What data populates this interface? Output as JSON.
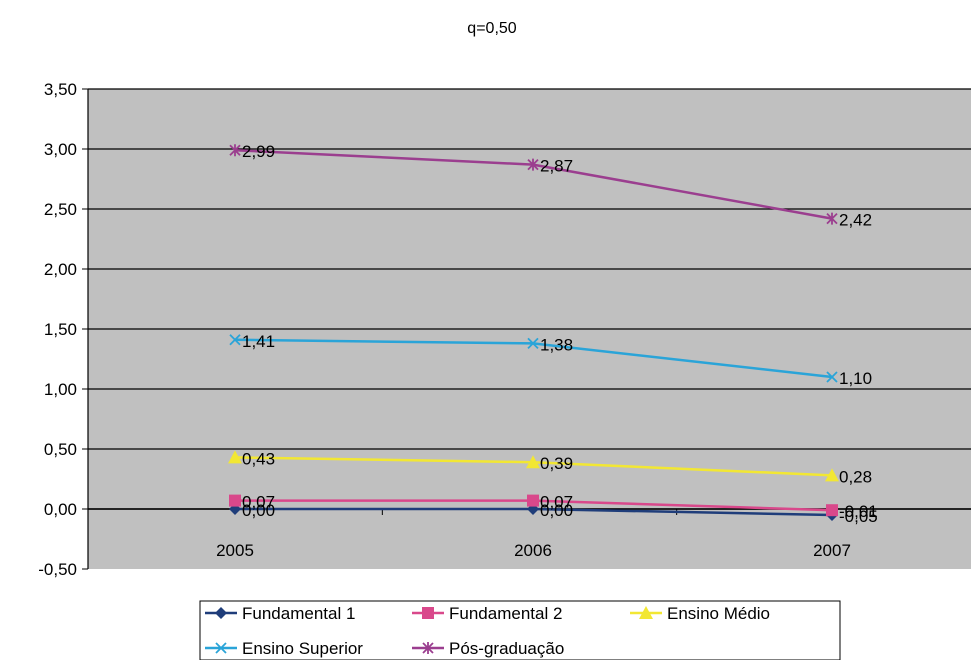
{
  "chart_data": {
    "type": "line",
    "title": "q=0,50",
    "categories": [
      "2005",
      "2006",
      "2007"
    ],
    "ylim": [
      -0.5,
      3.5
    ],
    "yticks": [
      "-0,50",
      "0,00",
      "0,50",
      "1,00",
      "1,50",
      "2,00",
      "2,50",
      "3,00",
      "3,50"
    ],
    "grid": true,
    "legend_position": "bottom",
    "series": [
      {
        "name": "Fundamental 1",
        "values": [
          0.0,
          0.0,
          -0.05
        ],
        "labels": [
          "0,00",
          "0,00",
          "-0,05"
        ],
        "color": "#1f3d7a",
        "marker": "diamond"
      },
      {
        "name": "Fundamental 2",
        "values": [
          0.07,
          0.07,
          -0.01
        ],
        "labels": [
          "0,07",
          "0,07",
          "-0,01"
        ],
        "color": "#d9488b",
        "marker": "square"
      },
      {
        "name": "Ensino Médio",
        "values": [
          0.43,
          0.39,
          0.28
        ],
        "labels": [
          "0,43",
          "0,39",
          "0,28"
        ],
        "color": "#f2e733",
        "marker": "triangle"
      },
      {
        "name": "Ensino Superior",
        "values": [
          1.41,
          1.38,
          1.1
        ],
        "labels": [
          "1,41",
          "1,38",
          "1,10"
        ],
        "color": "#2aa4d8",
        "marker": "x"
      },
      {
        "name": "Pós-graduação",
        "values": [
          2.99,
          2.87,
          2.42
        ],
        "labels": [
          "2,99",
          "2,87",
          "2,42"
        ],
        "color": "#9b3e8f",
        "marker": "star"
      }
    ]
  }
}
